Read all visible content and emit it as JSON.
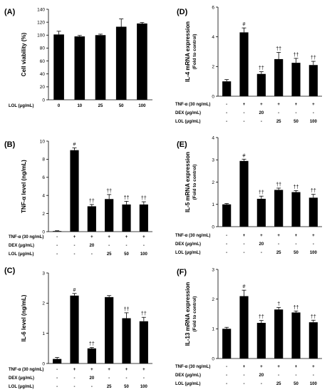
{
  "chart_data": [
    {
      "id": "A",
      "type": "bar",
      "panel_label": "(A)",
      "ylabel": "Cell viability (%)",
      "ylabel2": "",
      "ylim": [
        0,
        140
      ],
      "yticks": [
        0,
        20,
        40,
        60,
        80,
        100,
        120,
        140
      ],
      "values": [
        101,
        98,
        100,
        113,
        118
      ],
      "errors": [
        5,
        1.5,
        1.5,
        12,
        1.5
      ],
      "annotations": [
        "",
        "",
        "",
        "",
        ""
      ],
      "rows": [
        {
          "label": "LOL (μg/mL)",
          "cells": [
            "0",
            "10",
            "25",
            "50",
            "100"
          ]
        }
      ]
    },
    {
      "id": "B",
      "type": "bar",
      "panel_label": "(B)",
      "ylabel": "TNF-α level (ng/mL)",
      "ylabel2": "",
      "ylim": [
        0,
        10
      ],
      "yticks": [
        0,
        2,
        4,
        6,
        8,
        10
      ],
      "values": [
        0.05,
        9.0,
        2.8,
        3.6,
        3.0,
        3.0
      ],
      "errors": [
        0.05,
        0.25,
        0.2,
        0.5,
        0.35,
        0.3
      ],
      "annotations": [
        "",
        "#",
        "††",
        "††",
        "††",
        "††"
      ],
      "rows": [
        {
          "label": "TNF-α (30 ng/mL)",
          "cells": [
            "-",
            "+",
            "+",
            "+",
            "+",
            "+"
          ]
        },
        {
          "label": "DEX (μg/mL)",
          "cells": [
            "-",
            "-",
            "20",
            "-",
            "-",
            "-"
          ]
        },
        {
          "label": "LOL (μg/mL)",
          "cells": [
            "-",
            "-",
            "-",
            "25",
            "50",
            "100"
          ]
        }
      ]
    },
    {
      "id": "C",
      "type": "bar",
      "panel_label": "(C)",
      "ylabel": "IL-6 level (ng/mL)",
      "ylabel2": "",
      "ylim": [
        0,
        3
      ],
      "yticks": [
        0,
        1,
        2,
        3
      ],
      "values": [
        0.15,
        2.25,
        0.5,
        2.2,
        1.5,
        1.4
      ],
      "errors": [
        0.05,
        0.07,
        0.03,
        0.05,
        0.18,
        0.13
      ],
      "annotations": [
        "",
        "#",
        "††",
        "",
        "††",
        "††"
      ],
      "rows": [
        {
          "label": "TNF-α (30 ng/mL)",
          "cells": [
            "-",
            "+",
            "+",
            "+",
            "+",
            "+"
          ]
        },
        {
          "label": "DEX (μg/mL)",
          "cells": [
            "-",
            "-",
            "20",
            "-",
            "-",
            "-"
          ]
        },
        {
          "label": "LOL (μg/mL)",
          "cells": [
            "-",
            "-",
            "-",
            "25",
            "50",
            "100"
          ]
        }
      ]
    },
    {
      "id": "D",
      "type": "bar",
      "panel_label": "(D)",
      "ylabel": "IL-4 mRNA expression",
      "ylabel2": "(Fold to control)",
      "ylim": [
        0,
        6
      ],
      "yticks": [
        0,
        2,
        4,
        6
      ],
      "values": [
        1.0,
        4.3,
        1.5,
        2.5,
        2.25,
        2.1
      ],
      "errors": [
        0.12,
        0.3,
        0.15,
        0.45,
        0.3,
        0.25
      ],
      "annotations": [
        "",
        "#",
        "††",
        "††",
        "††",
        "††"
      ],
      "rows": [
        {
          "label": "TNF-α (30 ng/mL)",
          "cells": [
            "-",
            "+",
            "+",
            "+",
            "+",
            "+"
          ]
        },
        {
          "label": "DEX (μg/mL)",
          "cells": [
            "-",
            "-",
            "20",
            "-",
            "-",
            "-"
          ]
        },
        {
          "label": "LOL (μg/mL)",
          "cells": [
            "-",
            "-",
            "-",
            "25",
            "50",
            "100"
          ]
        }
      ]
    },
    {
      "id": "E",
      "type": "bar",
      "panel_label": "(E)",
      "ylabel": "IL-5 mRNA expression",
      "ylabel2": "(Fold to control)",
      "ylim": [
        0,
        4
      ],
      "yticks": [
        0,
        1,
        2,
        3,
        4
      ],
      "values": [
        1.0,
        2.95,
        1.25,
        1.65,
        1.55,
        1.3
      ],
      "errors": [
        0.04,
        0.08,
        0.12,
        0.08,
        0.07,
        0.15
      ],
      "annotations": [
        "",
        "#",
        "††",
        "††",
        "††",
        "††"
      ],
      "rows": [
        {
          "label": "TNF-α (30 ng/mL)",
          "cells": [
            "-",
            "+",
            "+",
            "+",
            "+",
            "+"
          ]
        },
        {
          "label": "DEX (μg/mL)",
          "cells": [
            "-",
            "-",
            "20",
            "-",
            "-",
            "-"
          ]
        },
        {
          "label": "LOL (μg/mL)",
          "cells": [
            "-",
            "-",
            "-",
            "25",
            "50",
            "100"
          ]
        }
      ]
    },
    {
      "id": "F",
      "type": "bar",
      "panel_label": "(F)",
      "ylabel": "IL-13 mRNA expression",
      "ylabel2": "(Fold to control)",
      "ylim": [
        0,
        3
      ],
      "yticks": [
        0,
        1,
        2,
        3
      ],
      "values": [
        1.0,
        2.1,
        1.2,
        1.65,
        1.55,
        1.22
      ],
      "errors": [
        0.05,
        0.2,
        0.08,
        0.07,
        0.05,
        0.07
      ],
      "annotations": [
        "",
        "#",
        "††",
        "†",
        "††",
        "††"
      ],
      "rows": [
        {
          "label": "TNF-α (30 ng/mL)",
          "cells": [
            "-",
            "+",
            "+",
            "+",
            "+",
            "+"
          ]
        },
        {
          "label": "DEX (μg/mL)",
          "cells": [
            "-",
            "-",
            "20",
            "-",
            "-",
            "-"
          ]
        },
        {
          "label": "LOL (μg/mL)",
          "cells": [
            "-",
            "-",
            "-",
            "25",
            "50",
            "100"
          ]
        }
      ]
    }
  ]
}
